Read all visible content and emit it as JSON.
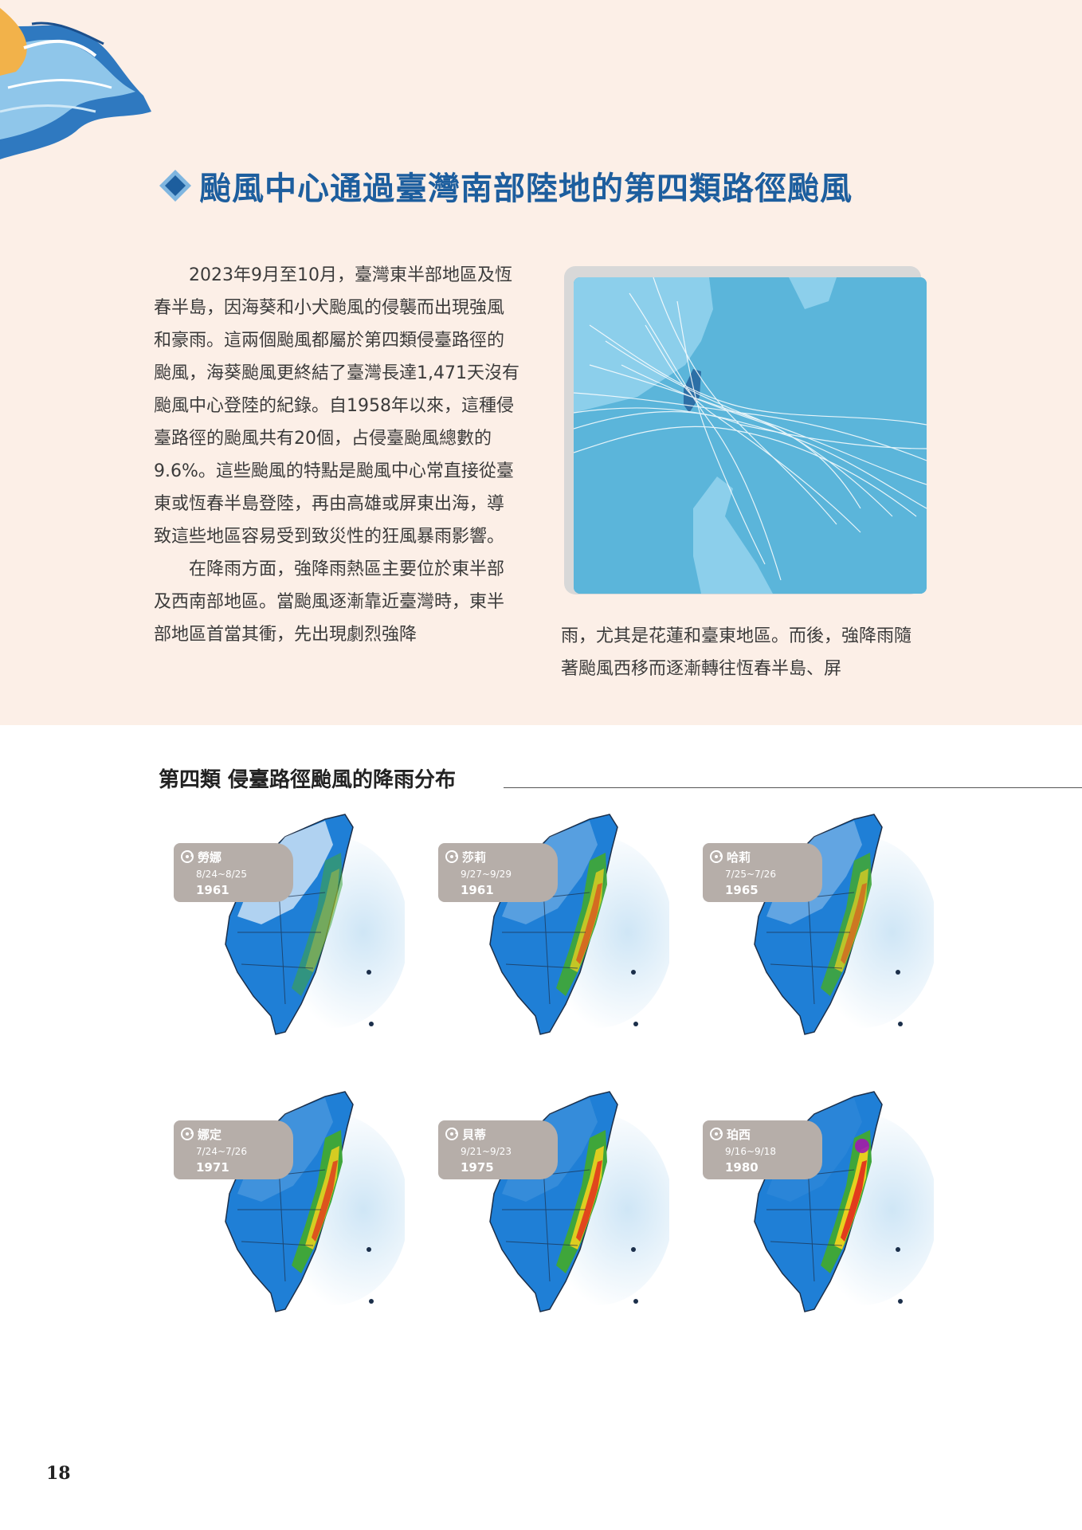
{
  "heading": {
    "title": "颱風中心通過臺灣南部陸地的第四類路徑颱風"
  },
  "body": {
    "paragraph_1": "2023年9月至10月，臺灣東半部地區及恆春半島，因海葵和小犬颱風的侵襲而出現強風和豪雨。這兩個颱風都屬於第四類侵臺路徑的颱風，海葵颱風更終結了臺灣長達1,471天沒有颱風中心登陸的紀錄。自1958年以來，這種侵臺路徑的颱風共有20個，占侵臺颱風總數的9.6%。這些颱風的特點是颱風中心常直接從臺東或恆春半島登陸，再由高雄或屏東出海，導致這些地區容易受到致災性的狂風暴雨影響。",
    "paragraph_2": "在降雨方面，強降雨熱區主要位於東半部及西南部地區。當颱風逐漸靠近臺灣時，東半部地區首當其衝，先出現劇烈強降",
    "paragraph_2_continued": "雨，尤其是花蓮和臺東地區。而後，強降雨隨著颱風西移而逐漸轉往恆春半島、屏"
  },
  "section": {
    "title": "第四類 侵臺路徑颱風的降雨分布"
  },
  "typhoons": [
    {
      "name": "勞娜",
      "dates": "8/24~8/25",
      "year": "1961",
      "intensity": 0.35
    },
    {
      "name": "莎莉",
      "dates": "9/27~9/29",
      "year": "1961",
      "intensity": 0.75
    },
    {
      "name": "哈莉",
      "dates": "7/25~7/26",
      "year": "1965",
      "intensity": 0.7
    },
    {
      "name": "娜定",
      "dates": "7/24~7/26",
      "year": "1971",
      "intensity": 0.85
    },
    {
      "name": "貝蒂",
      "dates": "9/21~9/23",
      "year": "1975",
      "intensity": 0.9
    },
    {
      "name": "珀西",
      "dates": "9/16~9/18",
      "year": "1980",
      "intensity": 0.95
    }
  ],
  "colors": {
    "band": "#fcefe7",
    "heading": "#1d5e9e",
    "sea": "#5bb5da",
    "land": "#2d6fa6",
    "track": "#ffffff"
  },
  "footer": {
    "page_number": "18"
  }
}
